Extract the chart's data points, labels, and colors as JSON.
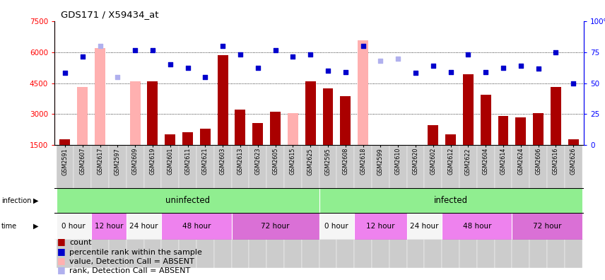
{
  "title": "GDS171 / X59434_at",
  "samples": [
    "GSM2591",
    "GSM2607",
    "GSM2617",
    "GSM2597",
    "GSM2609",
    "GSM2619",
    "GSM2601",
    "GSM2611",
    "GSM2621",
    "GSM2603",
    "GSM2613",
    "GSM2623",
    "GSM2605",
    "GSM2615",
    "GSM2625",
    "GSM2595",
    "GSM2608",
    "GSM2618",
    "GSM2599",
    "GSM2610",
    "GSM2620",
    "GSM2602",
    "GSM2612",
    "GSM2622",
    "GSM2604",
    "GSM2614",
    "GSM2624",
    "GSM2606",
    "GSM2616",
    "GSM2626"
  ],
  "count_present": [
    1750,
    null,
    null,
    null,
    null,
    4600,
    2000,
    2100,
    2300,
    5850,
    3200,
    2550,
    3100,
    null,
    4600,
    4250,
    3850,
    null,
    null,
    null,
    null,
    2450,
    2000,
    4950,
    3950,
    2900,
    2850,
    3050,
    4300,
    1750
  ],
  "count_absent": [
    null,
    4300,
    6200,
    null,
    4600,
    null,
    null,
    null,
    null,
    null,
    null,
    null,
    null,
    3050,
    null,
    null,
    null,
    6600,
    null,
    null,
    null,
    null,
    null,
    null,
    null,
    null,
    null,
    null,
    null,
    null
  ],
  "rank_present": [
    5000,
    5800,
    null,
    null,
    6100,
    6100,
    5400,
    5250,
    4800,
    6300,
    5900,
    5250,
    6100,
    5800,
    5900,
    5100,
    5050,
    6300,
    null,
    null,
    5000,
    5350,
    5050,
    5900,
    5050,
    5250,
    5350,
    5200,
    6000,
    4500
  ],
  "rank_absent": [
    null,
    null,
    6300,
    4800,
    null,
    null,
    null,
    null,
    null,
    null,
    null,
    null,
    null,
    null,
    null,
    null,
    null,
    null,
    5600,
    5700,
    null,
    null,
    null,
    null,
    null,
    null,
    null,
    null,
    null,
    null
  ],
  "ylim_left": [
    1500,
    7500
  ],
  "ylim_right": [
    0,
    100
  ],
  "yticks_left": [
    1500,
    3000,
    4500,
    6000,
    7500
  ],
  "yticks_right": [
    0,
    25,
    50,
    75,
    100
  ],
  "bar_color_present": "#aa0000",
  "bar_color_absent": "#ffb0b0",
  "rank_color_present": "#0000cc",
  "rank_color_absent": "#b0b0ee",
  "infection_color": "#90ee90",
  "bar_width": 0.6,
  "dot_size": 18,
  "gridlines": [
    3000,
    4500,
    6000
  ],
  "time_groups": [
    {
      "label": "0 hour",
      "start": 0,
      "end": 1,
      "color": "#f5f5f5"
    },
    {
      "label": "12 hour",
      "start": 2,
      "end": 3,
      "color": "#ee82ee"
    },
    {
      "label": "24 hour",
      "start": 4,
      "end": 5,
      "color": "#f5f5f5"
    },
    {
      "label": "48 hour",
      "start": 6,
      "end": 9,
      "color": "#ee82ee"
    },
    {
      "label": "72 hour",
      "start": 10,
      "end": 14,
      "color": "#da70d6"
    },
    {
      "label": "0 hour",
      "start": 15,
      "end": 16,
      "color": "#f5f5f5"
    },
    {
      "label": "12 hour",
      "start": 17,
      "end": 19,
      "color": "#ee82ee"
    },
    {
      "label": "24 hour",
      "start": 20,
      "end": 21,
      "color": "#f5f5f5"
    },
    {
      "label": "48 hour",
      "start": 22,
      "end": 25,
      "color": "#ee82ee"
    },
    {
      "label": "72 hour",
      "start": 26,
      "end": 29,
      "color": "#da70d6"
    }
  ],
  "infection_groups": [
    {
      "label": "uninfected",
      "start": 0,
      "end": 14,
      "color": "#90ee90"
    },
    {
      "label": "infected",
      "start": 15,
      "end": 29,
      "color": "#90ee90"
    }
  ],
  "legend_labels": [
    "count",
    "percentile rank within the sample",
    "value, Detection Call = ABSENT",
    "rank, Detection Call = ABSENT"
  ],
  "legend_colors": [
    "#aa0000",
    "#0000cc",
    "#ffb0b0",
    "#b0b0ee"
  ]
}
